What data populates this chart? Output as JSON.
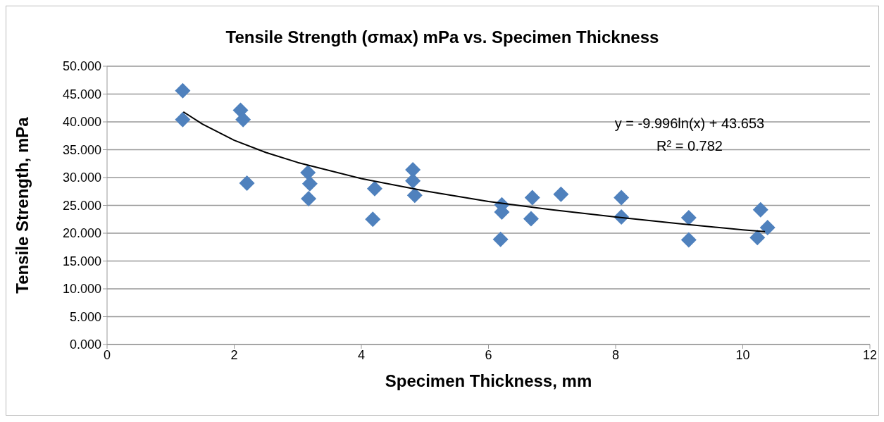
{
  "chart_data": {
    "type": "scatter",
    "title": "Tensile Strength (σmax) mPa vs. Specimen Thickness",
    "xlabel": "Specimen Thickness, mm",
    "ylabel": "Tensile Strength, mPa",
    "xlim": [
      0,
      12
    ],
    "xticks": [
      0,
      2,
      4,
      6,
      8,
      10,
      12
    ],
    "ylim": [
      0,
      50
    ],
    "yticks": [
      {
        "value": 0,
        "label": "0.000"
      },
      {
        "value": 5,
        "label": "5.000"
      },
      {
        "value": 10,
        "label": "10.000"
      },
      {
        "value": 15,
        "label": "15.000"
      },
      {
        "value": 20,
        "label": "20.000"
      },
      {
        "value": 25,
        "label": "25.000"
      },
      {
        "value": 30,
        "label": "30.000"
      },
      {
        "value": 35,
        "label": "35.000"
      },
      {
        "value": 40,
        "label": "40.000"
      },
      {
        "value": 45,
        "label": "45.000"
      },
      {
        "value": 50,
        "label": "50.000"
      }
    ],
    "grid": "y",
    "legend": false,
    "marker": "diamond",
    "annotations": [
      "y = -9.996ln(x) + 43.653",
      "R² = 0.782"
    ],
    "series": [
      {
        "type": "scatter",
        "color": "#4f81bd",
        "x": [
          1.19,
          1.19,
          2.1,
          2.14,
          2.2,
          3.16,
          3.19,
          3.17,
          4.21,
          4.18,
          4.81,
          4.81,
          4.84,
          6.21,
          6.21,
          6.19,
          6.69,
          6.67,
          7.14,
          8.09,
          8.09,
          9.15,
          9.15,
          10.28,
          10.39,
          10.23
        ],
        "values": [
          45.6,
          40.4,
          42.1,
          40.4,
          29.0,
          30.9,
          28.9,
          26.2,
          28.0,
          22.5,
          31.4,
          29.4,
          26.8,
          25.1,
          23.8,
          18.9,
          26.4,
          22.6,
          27.0,
          26.4,
          22.9,
          22.8,
          18.8,
          24.2,
          21.0,
          19.2
        ]
      },
      {
        "type": "line",
        "color": "#000000",
        "marker": "none",
        "x": [
          1.2,
          1.5,
          2,
          2.5,
          3,
          4,
          5,
          6,
          7,
          8,
          9,
          10,
          10.35
        ],
        "values": [
          41.8,
          39.6,
          36.7,
          34.5,
          32.7,
          29.8,
          27.6,
          25.7,
          24.2,
          22.9,
          21.7,
          20.6,
          20.3
        ]
      }
    ]
  }
}
